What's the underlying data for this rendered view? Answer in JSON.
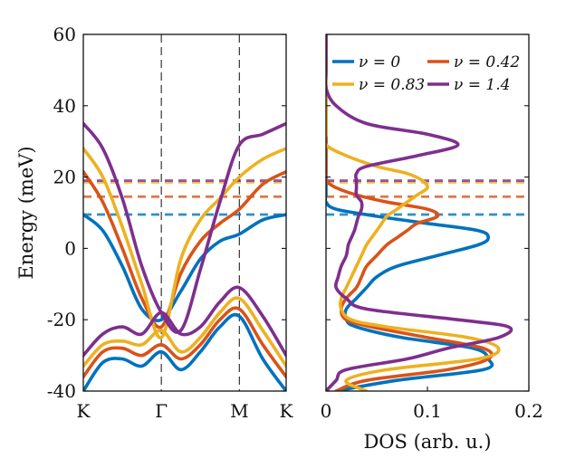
{
  "chart_data": [
    {
      "type": "line",
      "panel": "band-structure",
      "ylabel": "Energy (meV)",
      "xlabel": "",
      "ylim": [
        -40,
        60
      ],
      "yticks": [
        -40,
        -20,
        0,
        20,
        40,
        60
      ],
      "xticks": [
        {
          "label": "K",
          "k": 0
        },
        {
          "label": "Γ",
          "k": 1
        },
        {
          "label": "M",
          "k": 2
        },
        {
          "label": "K",
          "k": 2.6
        }
      ],
      "high_symmetry_lines": [
        "Γ",
        "M"
      ],
      "k_samples": [
        0,
        0.25,
        0.5,
        0.75,
        1,
        1.25,
        1.5,
        1.75,
        2,
        2.3,
        2.6
      ],
      "series": [
        {
          "name": "ν = 0",
          "color": "#0072BD",
          "upper_band": [
            9.5,
            5,
            -5,
            -17,
            -20,
            -12,
            -3,
            2,
            4,
            8,
            9.5
          ],
          "lower_band": [
            -40,
            -32,
            -31,
            -33,
            -29,
            -34,
            -29,
            -22,
            -19,
            -31,
            -40
          ],
          "fermi_level": 9.5
        },
        {
          "name": "ν = 0.42",
          "color": "#D95319",
          "upper_band": [
            21.5,
            13,
            0,
            -14,
            -22,
            -7,
            2,
            7,
            11,
            18,
            21.5
          ],
          "lower_band": [
            -36,
            -29,
            -28,
            -30,
            -27,
            -31,
            -27,
            -20,
            -17,
            -27,
            -36
          ],
          "fermi_level": 14.5
        },
        {
          "name": "ν = 0.83",
          "color": "#EDB120",
          "upper_band": [
            28,
            20,
            6,
            -10,
            -25,
            -3,
            8,
            14,
            20,
            25,
            28
          ],
          "lower_band": [
            -33,
            -27,
            -26,
            -27,
            -23,
            -29,
            -25,
            -18,
            -14,
            -23,
            -33
          ],
          "fermi_level": 18.5
        },
        {
          "name": "ν = 1.4",
          "color": "#7E2F8E",
          "upper_band": [
            35,
            28,
            14,
            -5,
            -18,
            -23,
            -6,
            13,
            29,
            32,
            35
          ],
          "lower_band": [
            -30,
            -24,
            -22,
            -24,
            -18,
            -24,
            -22,
            -15,
            -11,
            -19,
            -30
          ],
          "fermi_level": 19
        }
      ]
    },
    {
      "type": "line",
      "panel": "density-of-states",
      "xlabel": "DOS (arb. u.)",
      "ylabel": "",
      "xlim": [
        0,
        0.2
      ],
      "ylim": [
        -40,
        60
      ],
      "xticks": [
        0,
        0.1,
        0.2
      ],
      "legend": {
        "placement": "top",
        "columns": 2
      },
      "energy_samples": [
        -40,
        -37,
        -34,
        -31,
        -28,
        -25,
        -22,
        -20,
        -17,
        -14,
        -11,
        -8,
        -5,
        -2,
        1,
        3,
        5,
        7,
        9,
        11,
        13,
        15,
        17,
        19,
        21,
        23,
        26,
        29,
        32,
        35,
        40,
        45,
        50,
        60
      ],
      "series": [
        {
          "name": "ν = 0",
          "color": "#0072BD",
          "dos": [
            0.01,
            0.07,
            0.155,
            0.16,
            0.145,
            0.075,
            0.03,
            0.02,
            0.02,
            0.03,
            0.04,
            0.05,
            0.07,
            0.11,
            0.15,
            0.16,
            0.15,
            0.1,
            0.05,
            0.01,
            0.0,
            0.0,
            0.0,
            0.0,
            0.0,
            0.0,
            0.0,
            0.0,
            0.0,
            0.0,
            0.0,
            0.0,
            0.0,
            0.0
          ]
        },
        {
          "name": "ν = 0.42",
          "color": "#D95319",
          "dos": [
            0.01,
            0.04,
            0.12,
            0.16,
            0.155,
            0.1,
            0.045,
            0.02,
            0.015,
            0.02,
            0.03,
            0.035,
            0.04,
            0.05,
            0.06,
            0.07,
            0.08,
            0.09,
            0.11,
            0.1,
            0.06,
            0.03,
            0.01,
            0.0,
            0.0,
            0.0,
            0.0,
            0.0,
            0.0,
            0.0,
            0.0,
            0.0,
            0.0,
            0.0
          ]
        },
        {
          "name": "ν = 0.83",
          "color": "#EDB120",
          "dos": [
            0.04,
            0.02,
            0.06,
            0.15,
            0.17,
            0.14,
            0.06,
            0.025,
            0.015,
            0.015,
            0.02,
            0.025,
            0.03,
            0.035,
            0.04,
            0.045,
            0.05,
            0.055,
            0.06,
            0.07,
            0.08,
            0.09,
            0.1,
            0.095,
            0.08,
            0.05,
            0.02,
            0.0,
            0.0,
            0.0,
            0.0,
            0.0,
            0.0,
            0.0
          ]
        },
        {
          "name": "ν = 1.4",
          "color": "#7E2F8E",
          "dos": [
            0.0,
            0.01,
            0.02,
            0.08,
            0.12,
            0.17,
            0.18,
            0.13,
            0.04,
            0.02,
            0.01,
            0.012,
            0.015,
            0.02,
            0.022,
            0.025,
            0.028,
            0.03,
            0.032,
            0.035,
            0.035,
            0.03,
            0.03,
            0.03,
            0.03,
            0.04,
            0.09,
            0.13,
            0.1,
            0.04,
            0.01,
            0.0,
            0.0,
            0.0
          ]
        }
      ]
    }
  ]
}
